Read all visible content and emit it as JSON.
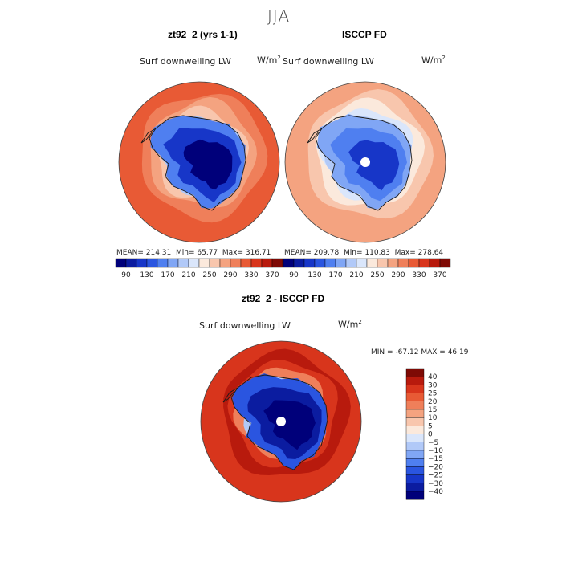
{
  "figure": {
    "season": "JJA",
    "colors": {
      "diverging": [
        "#00007a",
        "#0b1ca0",
        "#1736c8",
        "#2a55e0",
        "#4f7ff0",
        "#80a6f5",
        "#b1c9f8",
        "#dae6fb",
        "#fbe9dc",
        "#f8c6ad",
        "#f4a380",
        "#ef7f5a",
        "#e85a35",
        "#d8351c",
        "#b81a0d",
        "#7e0a05"
      ],
      "coast": "#1a1a1a",
      "ring": "#444444"
    }
  },
  "chart_data": [
    {
      "type": "heatmap",
      "projection": "south-polar-stereographic",
      "title": "zt92_2 (yrs 1-1)",
      "variable": "Surf downwelling LW",
      "units": "W/m",
      "units_exp": "2",
      "stats": {
        "mean_label": "MEAN=",
        "mean": "214.31",
        "min_label": "Min=",
        "min": "65.77",
        "max_label": "Max=",
        "max": "316.71"
      },
      "colorbar_ticks": [
        "90",
        "130",
        "170",
        "210",
        "250",
        "290",
        "330",
        "370"
      ],
      "field_levels": {
        "outer": 12,
        "mid1": 11,
        "mid2": 10,
        "mid3": 9,
        "ice1": 6,
        "ice2": 4,
        "ice3": 2,
        "core": 0
      },
      "pole_hole": false
    },
    {
      "type": "heatmap",
      "projection": "south-polar-stereographic",
      "title": "ISCCP FD",
      "variable": "Surf downwelling LW",
      "units": "W/m",
      "units_exp": "2",
      "stats": {
        "mean_label": "MEAN=",
        "mean": "209.78",
        "min_label": "Min=",
        "min": "110.83",
        "max_label": "Max=",
        "max": "278.64"
      },
      "colorbar_ticks": [
        "90",
        "130",
        "170",
        "210",
        "250",
        "290",
        "330",
        "370"
      ],
      "field_levels": {
        "outer": 10,
        "mid1": 9,
        "mid2": 8,
        "mid3": 7,
        "ice1": 6,
        "ice2": 5,
        "ice3": 4,
        "core": 2
      },
      "pole_hole": true
    },
    {
      "type": "heatmap",
      "projection": "south-polar-stereographic",
      "title": "zt92_2 - ISCCP FD",
      "variable": "Surf downwelling LW",
      "units": "W/m",
      "units_exp": "2",
      "stats": {
        "min_label": "MIN =",
        "min": "-67.12",
        "max_label": "MAX =",
        "max": "46.19"
      },
      "colorbar_ticks": [
        "40",
        "30",
        "25",
        "20",
        "15",
        "10",
        "5",
        "0",
        "−5",
        "−10",
        "−15",
        "−20",
        "−25",
        "−30",
        "−40"
      ],
      "field_levels": {
        "outer": 13,
        "mid1": 14,
        "mid2": 13,
        "mid3": 11,
        "ice1": 6,
        "ice2": 3,
        "ice3": 1,
        "core": 0
      },
      "pole_hole": true
    }
  ]
}
